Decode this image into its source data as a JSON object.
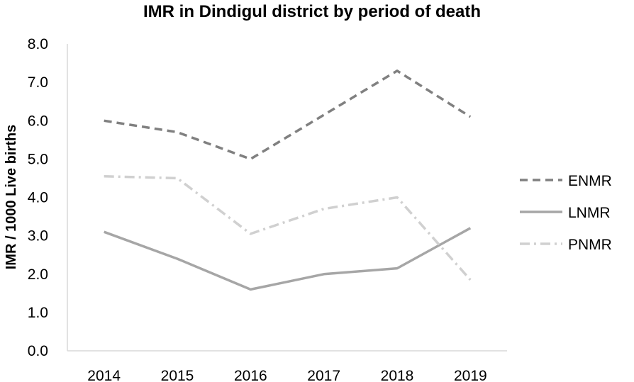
{
  "chart_data": {
    "type": "line",
    "title": "IMR in Dindigul district by period of death",
    "xlabel": "",
    "ylabel": "IMR / 1000 Live births",
    "ylim": [
      0,
      8
    ],
    "yticks": [
      "0.0",
      "1.0",
      "2.0",
      "3.0",
      "4.0",
      "5.0",
      "6.0",
      "7.0",
      "8.0"
    ],
    "categories": [
      "2014",
      "2015",
      "2016",
      "2017",
      "2018",
      "2019"
    ],
    "legend_position": "right",
    "series": [
      {
        "name": "ENMR",
        "values": [
          6.0,
          5.7,
          5.0,
          6.15,
          7.3,
          6.1
        ],
        "color": "#808080",
        "style": "dashed"
      },
      {
        "name": "LNMR",
        "values": [
          3.1,
          2.4,
          1.6,
          2.0,
          2.15,
          3.2
        ],
        "color": "#a6a6a6",
        "style": "solid"
      },
      {
        "name": "PNMR",
        "values": [
          4.55,
          4.5,
          3.05,
          3.7,
          4.0,
          1.85
        ],
        "color": "#d0d0d0",
        "style": "dashdot"
      }
    ]
  }
}
